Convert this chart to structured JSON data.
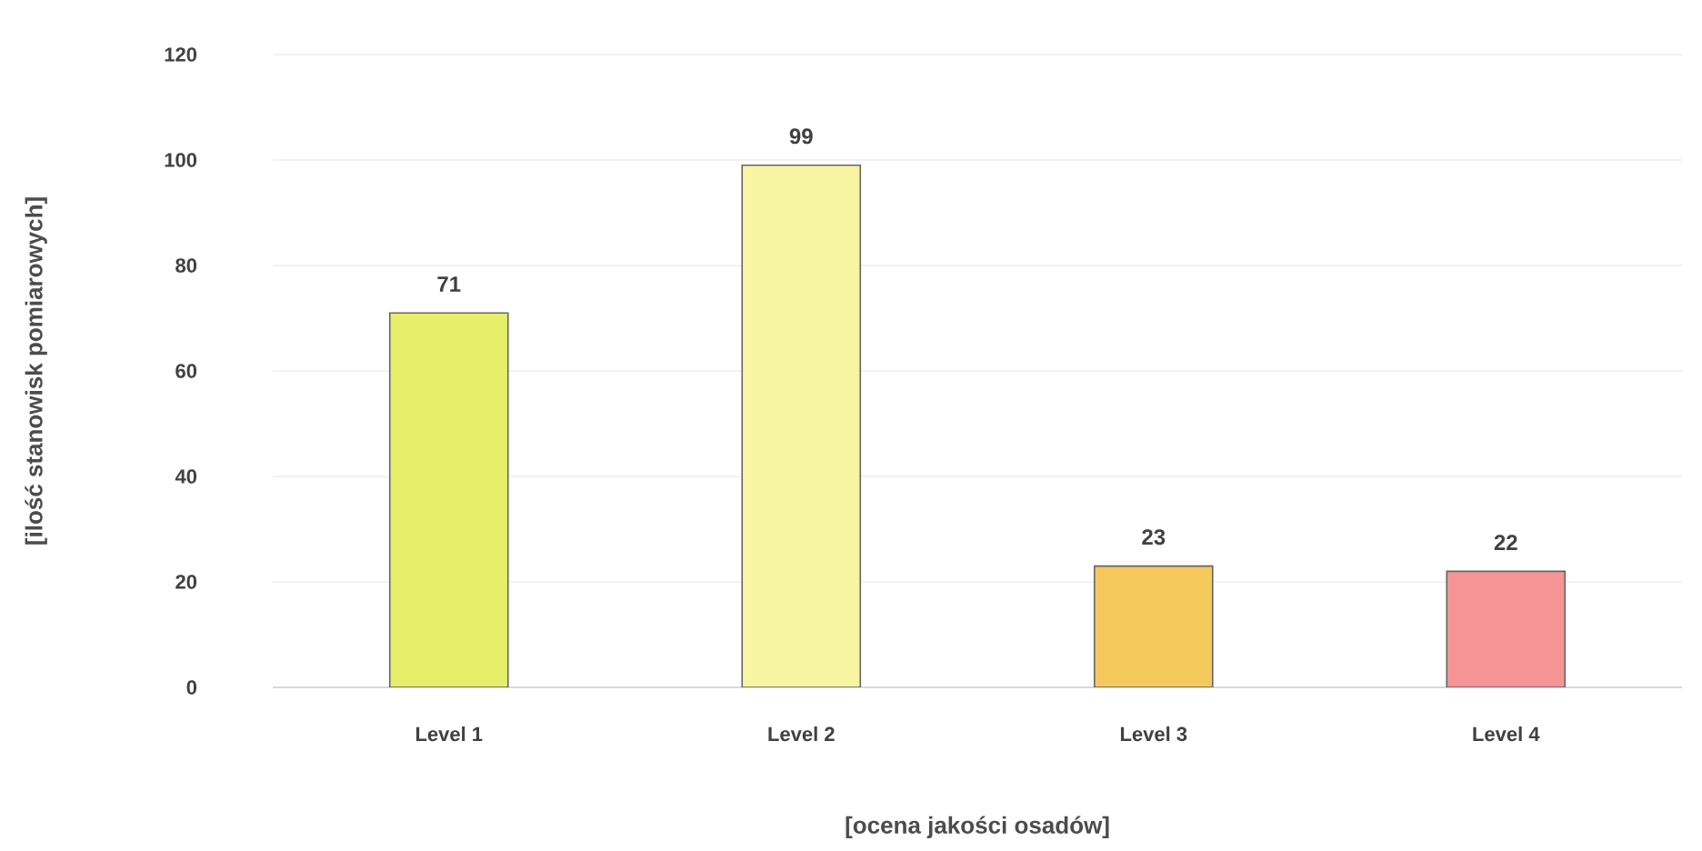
{
  "chart_data": {
    "type": "bar",
    "xlabel": "[ocena jakości osadów]",
    "ylabel": "[ilość stanowisk pomiarowych]",
    "categories": [
      "Level 1",
      "Level 2",
      "Level 3",
      "Level 4"
    ],
    "values": [
      71,
      99,
      23,
      22
    ],
    "colors": [
      "#e6ee6a",
      "#f7f5a2",
      "#f5c95c",
      "#f59595"
    ],
    "ylim": [
      0,
      120
    ],
    "yticks": [
      0,
      20,
      40,
      60,
      80,
      100,
      120
    ],
    "grid": "y",
    "data_labels": true
  }
}
